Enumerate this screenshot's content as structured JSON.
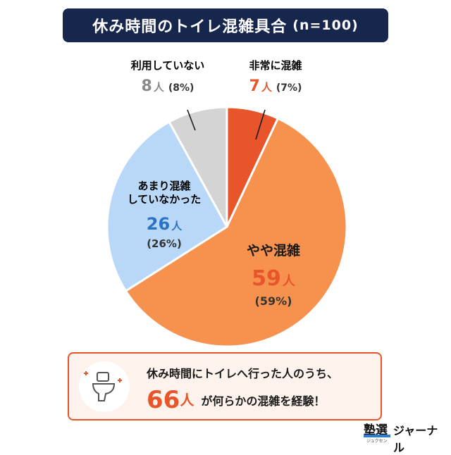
{
  "title": {
    "main": "休み時間のトイレ混雑具合",
    "n": "(n=100)"
  },
  "chart_data": {
    "type": "pie",
    "slices": [
      {
        "label": "非常に混雑",
        "count": "7",
        "unit": "人",
        "percent": "(7%)",
        "value": 7,
        "color": "#e8552a",
        "label_color": "#e8552a"
      },
      {
        "label": "やや混雑",
        "count": "59",
        "unit": "人",
        "percent": "(59%)",
        "value": 59,
        "color": "#f7914e",
        "label_color": "#e8552a"
      },
      {
        "label_line1": "あまり混雑",
        "label_line2": "していなかった",
        "count": "26",
        "unit": "人",
        "percent": "(26%)",
        "value": 26,
        "color": "#b9d8f7",
        "label_color": "#2c72c2"
      },
      {
        "label": "利用していない",
        "count": "8",
        "unit": "人",
        "percent": "(8%)",
        "value": 8,
        "color": "#d4d4d4",
        "label_color": "#8a8a8a"
      }
    ]
  },
  "callout": {
    "line1": "休み時間にトイレへ行った人のうち、",
    "big_number": "66",
    "big_unit": "人",
    "line2_rest": "が何らかの混雑を経験！"
  },
  "logo": {
    "mark": "塾選",
    "sub": "ジュクセン",
    "name": "ジャーナル"
  }
}
